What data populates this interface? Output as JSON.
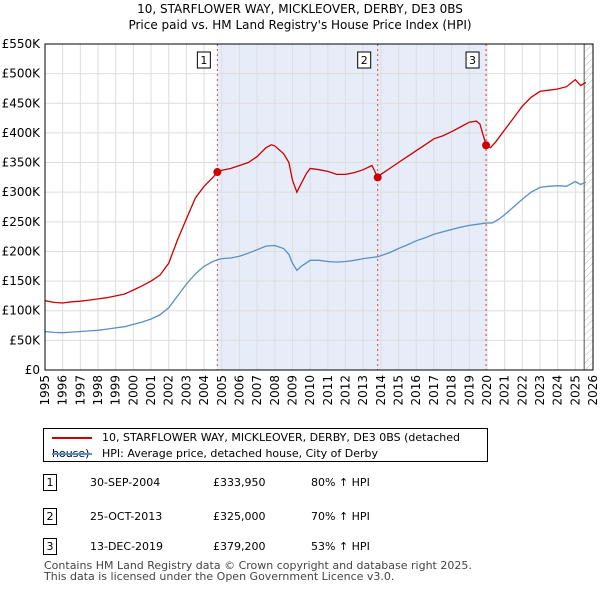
{
  "title_line1": "10, STARFLOWER WAY, MICKLEOVER, DERBY, DE3 0BS",
  "title_line2": "Price paid vs. HM Land Registry's House Price Index (HPI)",
  "chart_data": {
    "type": "line",
    "xlim": [
      1995,
      2026
    ],
    "ylim": [
      0,
      550000
    ],
    "y_ticks": [
      {
        "value": 0,
        "label": "£0"
      },
      {
        "value": 50000,
        "label": "£50K"
      },
      {
        "value": 100000,
        "label": "£100K"
      },
      {
        "value": 150000,
        "label": "£150K"
      },
      {
        "value": 200000,
        "label": "£200K"
      },
      {
        "value": 250000,
        "label": "£250K"
      },
      {
        "value": 300000,
        "label": "£300K"
      },
      {
        "value": 350000,
        "label": "£350K"
      },
      {
        "value": 400000,
        "label": "£400K"
      },
      {
        "value": 450000,
        "label": "£450K"
      },
      {
        "value": 500000,
        "label": "£500K"
      },
      {
        "value": 550000,
        "label": "£550K"
      }
    ],
    "x_ticks": [
      "1995",
      "1996",
      "1997",
      "1998",
      "1999",
      "2000",
      "2001",
      "2002",
      "2003",
      "2004",
      "2005",
      "2006",
      "2007",
      "2008",
      "2009",
      "2010",
      "2011",
      "2012",
      "2013",
      "2014",
      "2015",
      "2016",
      "2017",
      "2018",
      "2019",
      "2020",
      "2021",
      "2022",
      "2023",
      "2024",
      "2025",
      "2026"
    ],
    "shaded_span": [
      2004.75,
      2019.95
    ],
    "forecast_start": 2025.5,
    "series": [
      {
        "name": "10, STARFLOWER WAY, MICKLEOVER, DERBY, DE3 0BS (detached house)",
        "color": "#cc0000",
        "points": [
          [
            1995.0,
            117000
          ],
          [
            1995.5,
            114000
          ],
          [
            1996.0,
            113000
          ],
          [
            1996.5,
            115000
          ],
          [
            1997.0,
            116000
          ],
          [
            1997.5,
            118000
          ],
          [
            1998.0,
            120000
          ],
          [
            1998.5,
            122000
          ],
          [
            1999.0,
            125000
          ],
          [
            1999.5,
            128000
          ],
          [
            2000.0,
            135000
          ],
          [
            2000.5,
            142000
          ],
          [
            2001.0,
            150000
          ],
          [
            2001.5,
            160000
          ],
          [
            2002.0,
            180000
          ],
          [
            2002.5,
            220000
          ],
          [
            2003.0,
            255000
          ],
          [
            2003.5,
            290000
          ],
          [
            2004.0,
            310000
          ],
          [
            2004.5,
            325000
          ],
          [
            2004.75,
            333950
          ],
          [
            2005.0,
            337000
          ],
          [
            2005.5,
            340000
          ],
          [
            2006.0,
            345000
          ],
          [
            2006.5,
            350000
          ],
          [
            2007.0,
            360000
          ],
          [
            2007.5,
            375000
          ],
          [
            2007.8,
            380000
          ],
          [
            2008.0,
            378000
          ],
          [
            2008.5,
            365000
          ],
          [
            2008.8,
            350000
          ],
          [
            2009.0,
            320000
          ],
          [
            2009.25,
            300000
          ],
          [
            2009.5,
            315000
          ],
          [
            2009.8,
            332000
          ],
          [
            2010.0,
            340000
          ],
          [
            2010.5,
            338000
          ],
          [
            2011.0,
            335000
          ],
          [
            2011.5,
            330000
          ],
          [
            2012.0,
            330000
          ],
          [
            2012.5,
            333000
          ],
          [
            2013.0,
            338000
          ],
          [
            2013.5,
            345000
          ],
          [
            2013.82,
            325000
          ],
          [
            2014.0,
            330000
          ],
          [
            2014.5,
            340000
          ],
          [
            2015.0,
            350000
          ],
          [
            2015.5,
            360000
          ],
          [
            2016.0,
            370000
          ],
          [
            2016.5,
            380000
          ],
          [
            2017.0,
            390000
          ],
          [
            2017.5,
            395000
          ],
          [
            2018.0,
            402000
          ],
          [
            2018.5,
            410000
          ],
          [
            2019.0,
            418000
          ],
          [
            2019.4,
            420000
          ],
          [
            2019.6,
            415000
          ],
          [
            2019.8,
            395000
          ],
          [
            2019.95,
            379200
          ],
          [
            2020.2,
            375000
          ],
          [
            2020.5,
            385000
          ],
          [
            2021.0,
            405000
          ],
          [
            2021.5,
            425000
          ],
          [
            2022.0,
            445000
          ],
          [
            2022.5,
            460000
          ],
          [
            2023.0,
            470000
          ],
          [
            2023.5,
            472000
          ],
          [
            2024.0,
            474000
          ],
          [
            2024.5,
            478000
          ],
          [
            2025.0,
            490000
          ],
          [
            2025.3,
            480000
          ],
          [
            2025.6,
            485000
          ]
        ]
      },
      {
        "name": "HPI: Average price, detached house, City of Derby",
        "color": "#5a8fc6",
        "points": [
          [
            1995.0,
            65000
          ],
          [
            1995.5,
            63500
          ],
          [
            1996.0,
            63000
          ],
          [
            1996.5,
            64000
          ],
          [
            1997.0,
            65000
          ],
          [
            1997.5,
            66000
          ],
          [
            1998.0,
            67000
          ],
          [
            1998.5,
            69000
          ],
          [
            1999.0,
            71000
          ],
          [
            1999.5,
            73000
          ],
          [
            2000.0,
            77000
          ],
          [
            2000.5,
            81000
          ],
          [
            2001.0,
            86000
          ],
          [
            2001.5,
            93000
          ],
          [
            2002.0,
            105000
          ],
          [
            2002.5,
            125000
          ],
          [
            2003.0,
            145000
          ],
          [
            2003.5,
            162000
          ],
          [
            2004.0,
            175000
          ],
          [
            2004.5,
            183000
          ],
          [
            2004.75,
            186000
          ],
          [
            2005.0,
            188000
          ],
          [
            2005.5,
            189000
          ],
          [
            2006.0,
            192000
          ],
          [
            2006.5,
            197000
          ],
          [
            2007.0,
            203000
          ],
          [
            2007.5,
            209000
          ],
          [
            2008.0,
            210000
          ],
          [
            2008.5,
            205000
          ],
          [
            2008.8,
            195000
          ],
          [
            2009.0,
            180000
          ],
          [
            2009.25,
            168000
          ],
          [
            2009.5,
            175000
          ],
          [
            2010.0,
            185000
          ],
          [
            2010.5,
            185000
          ],
          [
            2011.0,
            183000
          ],
          [
            2011.5,
            182000
          ],
          [
            2012.0,
            183000
          ],
          [
            2012.5,
            185000
          ],
          [
            2013.0,
            188000
          ],
          [
            2013.82,
            191000
          ],
          [
            2014.0,
            193000
          ],
          [
            2014.5,
            198000
          ],
          [
            2015.0,
            205000
          ],
          [
            2015.5,
            211000
          ],
          [
            2016.0,
            218000
          ],
          [
            2016.5,
            223000
          ],
          [
            2017.0,
            229000
          ],
          [
            2017.5,
            233000
          ],
          [
            2018.0,
            237000
          ],
          [
            2018.5,
            241000
          ],
          [
            2019.0,
            244000
          ],
          [
            2019.5,
            246000
          ],
          [
            2019.95,
            248000
          ],
          [
            2020.3,
            248000
          ],
          [
            2020.7,
            255000
          ],
          [
            2021.0,
            262000
          ],
          [
            2021.5,
            275000
          ],
          [
            2022.0,
            288000
          ],
          [
            2022.5,
            300000
          ],
          [
            2023.0,
            308000
          ],
          [
            2023.5,
            310000
          ],
          [
            2024.0,
            311000
          ],
          [
            2024.5,
            310000
          ],
          [
            2025.0,
            318000
          ],
          [
            2025.3,
            313000
          ],
          [
            2025.6,
            317000
          ]
        ]
      }
    ],
    "sales": [
      {
        "id": "1",
        "x": 2004.75,
        "y": 333950,
        "date": "30-SEP-2004",
        "price": "£333,950",
        "hpi": "80% ↑ HPI"
      },
      {
        "id": "2",
        "x": 2013.82,
        "y": 325000,
        "date": "25-OCT-2013",
        "price": "£325,000",
        "hpi": "70% ↑ HPI"
      },
      {
        "id": "3",
        "x": 2019.95,
        "y": 379200,
        "date": "13-DEC-2019",
        "price": "£379,200",
        "hpi": "53% ↑ HPI"
      }
    ]
  },
  "legend": {
    "property": "10, STARFLOWER WAY, MICKLEOVER, DERBY, DE3 0BS (detached house)",
    "hpi": "HPI: Average price, detached house, City of Derby"
  },
  "footer_line1": "Contains HM Land Registry data © Crown copyright and database right 2025.",
  "footer_line2": "This data is licensed under the Open Government Licence v3.0."
}
